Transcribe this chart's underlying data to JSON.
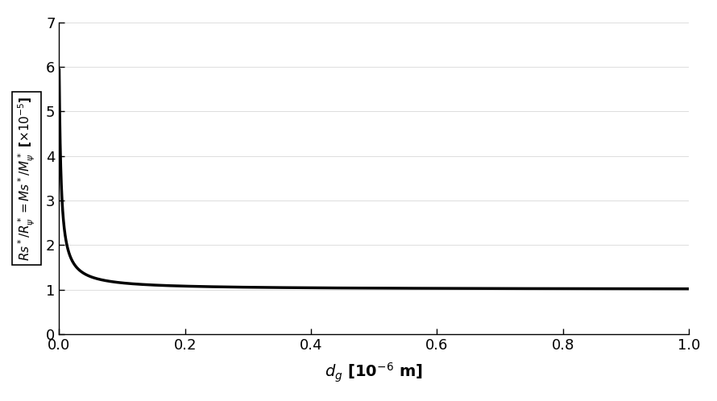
{
  "title": "",
  "xlabel": "$d_g$ [10$^{-6}$ m]",
  "ylabel": "$Rs^*/R_{\\psi}^* = Ms^*/M_{\\psi}^*$ [$\\times$10$^{-5}$]",
  "xlim": [
    0,
    1.0
  ],
  "ylim": [
    0,
    7
  ],
  "yticks": [
    0,
    1,
    2,
    3,
    4,
    5,
    6,
    7
  ],
  "xticks": [
    0.0,
    0.2,
    0.4,
    0.6,
    0.8,
    1.0
  ],
  "line_color": "#000000",
  "line_width": 2.5,
  "background_color": "#ffffff",
  "num_points": 3000,
  "curve_a": 0.003,
  "curve_k": 5.1
}
